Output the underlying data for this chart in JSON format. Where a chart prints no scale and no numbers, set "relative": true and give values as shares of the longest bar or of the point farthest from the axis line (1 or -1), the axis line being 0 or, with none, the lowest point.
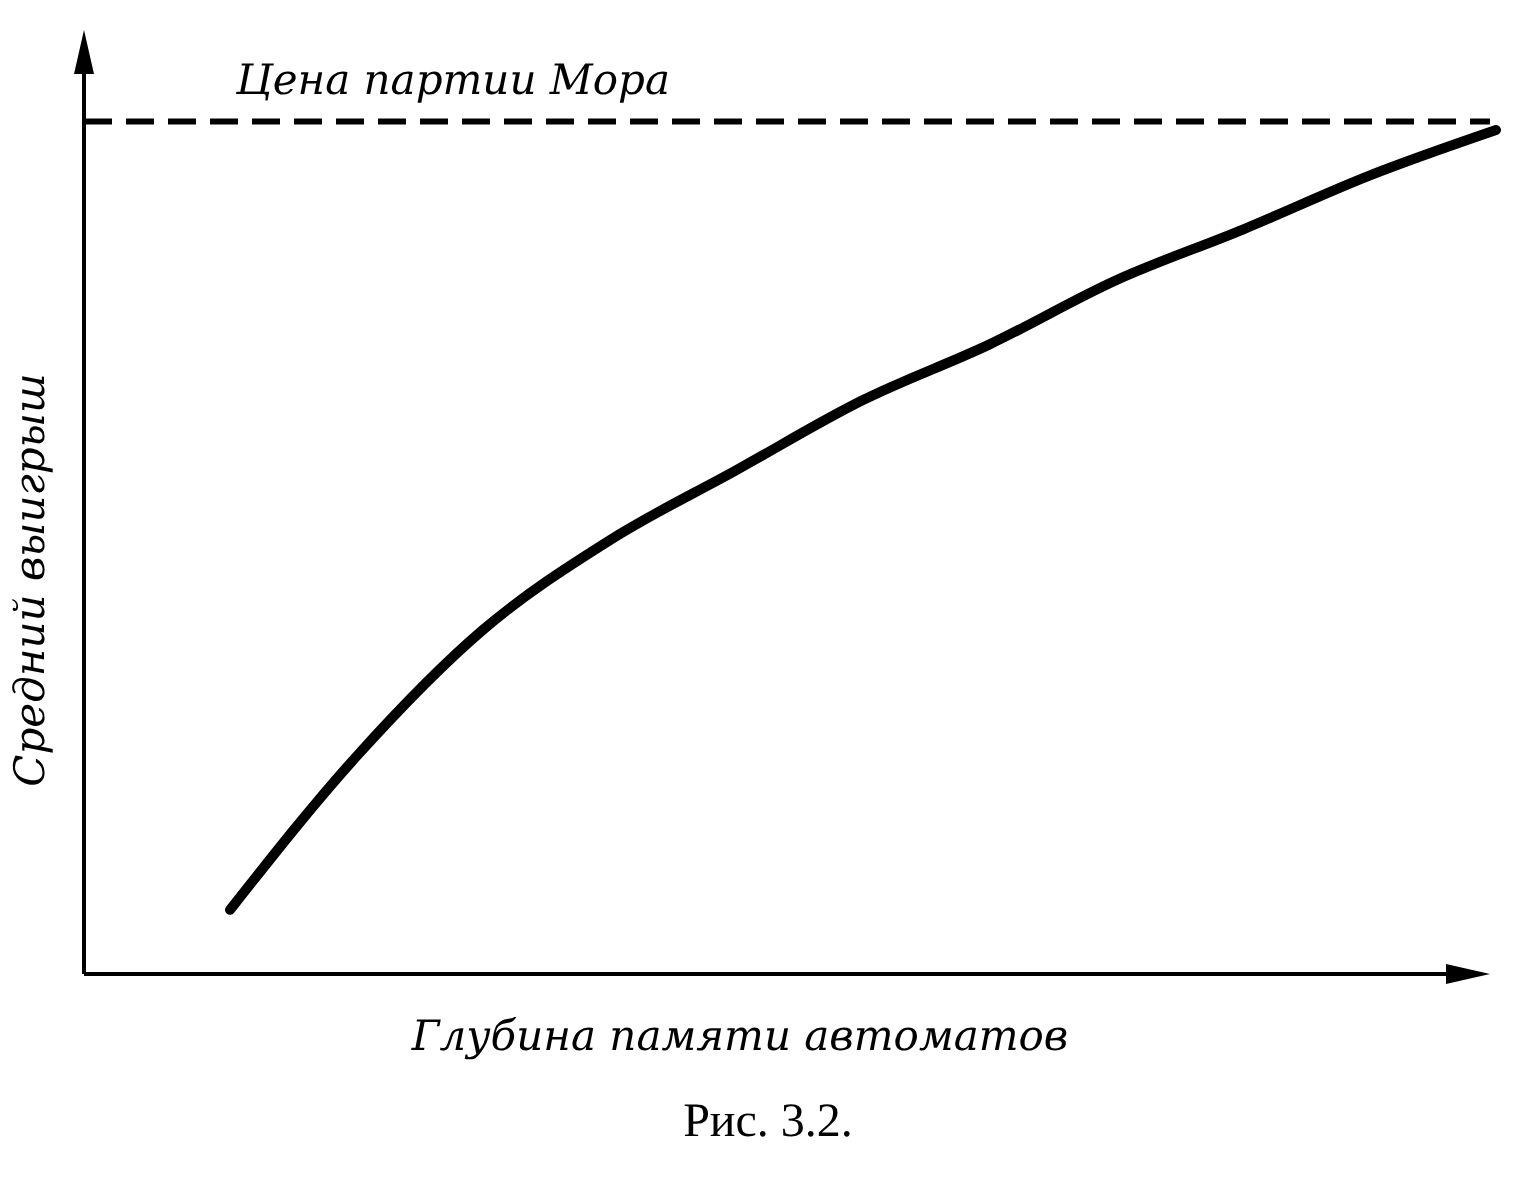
{
  "chart_data": {
    "type": "line",
    "relative": true,
    "xlabel": "Глубина памяти автоматов",
    "ylabel": "Средний выигрыш",
    "categories": [
      null,
      null,
      null,
      null,
      null,
      null,
      null,
      null,
      null,
      null,
      null
    ],
    "series": [
      {
        "color": "#000000",
        "values": [
          0.076,
          0.258,
          0.408,
          0.514,
          0.597,
          0.68,
          0.746,
          0.822,
          0.882,
          0.946,
          1
        ]
      }
    ],
    "ref_lines": [
      {
        "axis": "y",
        "value": 1.01,
        "label": "Цена партии Мора",
        "line_style": "dashed",
        "color": "#000000"
      }
    ],
    "annotations": [
      "Рис. 3.2."
    ],
    "marker": "none",
    "line_style": "solid"
  }
}
